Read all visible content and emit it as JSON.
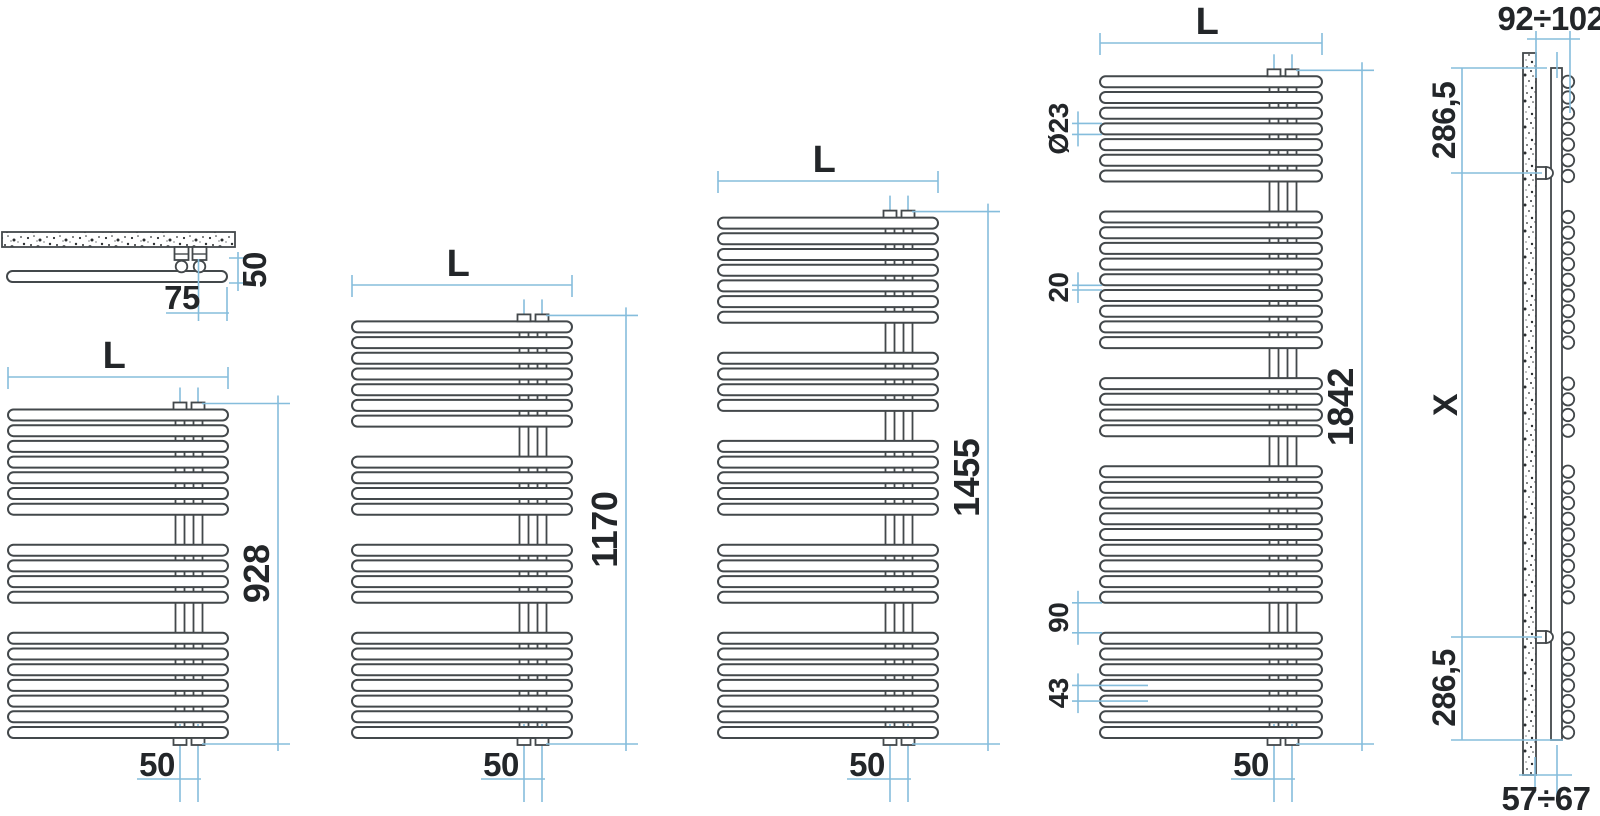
{
  "colors": {
    "ink": "#43484b",
    "dim": "#85bddc",
    "text": "#232629",
    "background": "#ffffff"
  },
  "detail_view": {
    "wall_offset_label": "50",
    "connection_spacing_label": "75"
  },
  "radiators": [
    {
      "id": "radiator-front-view-h928",
      "width_label": "L",
      "height_label": "928",
      "connection_pitch_label": "50",
      "tube_groups": [
        7,
        4,
        7
      ]
    },
    {
      "id": "radiator-front-view-h1170",
      "width_label": "L",
      "height_label": "1170",
      "connection_pitch_label": "50",
      "tube_groups": [
        7,
        4,
        4,
        7
      ]
    },
    {
      "id": "radiator-front-view-h1455",
      "width_label": "L",
      "height_label": "1455",
      "connection_pitch_label": "50",
      "tube_groups": [
        7,
        4,
        5,
        4,
        7
      ]
    },
    {
      "id": "radiator-front-view-h1842",
      "width_label": "L",
      "height_label": "1842",
      "connection_pitch_label": "50",
      "tube_groups": [
        7,
        9,
        4,
        9,
        7
      ],
      "tube_diameter_label": "Ø23",
      "tube_gap_label": "20",
      "group_gap_label": "90",
      "tube_axis_pitch_label": "43"
    }
  ],
  "side_view": {
    "depth_overall_label": "92÷102",
    "top_to_upper_bracket_label": "286,5",
    "bracket_span_label": "X",
    "lower_bracket_to_bottom_label": "286,5",
    "wall_to_collector_label": "57÷67",
    "tube_groups": [
      7,
      9,
      4,
      9,
      7
    ]
  }
}
